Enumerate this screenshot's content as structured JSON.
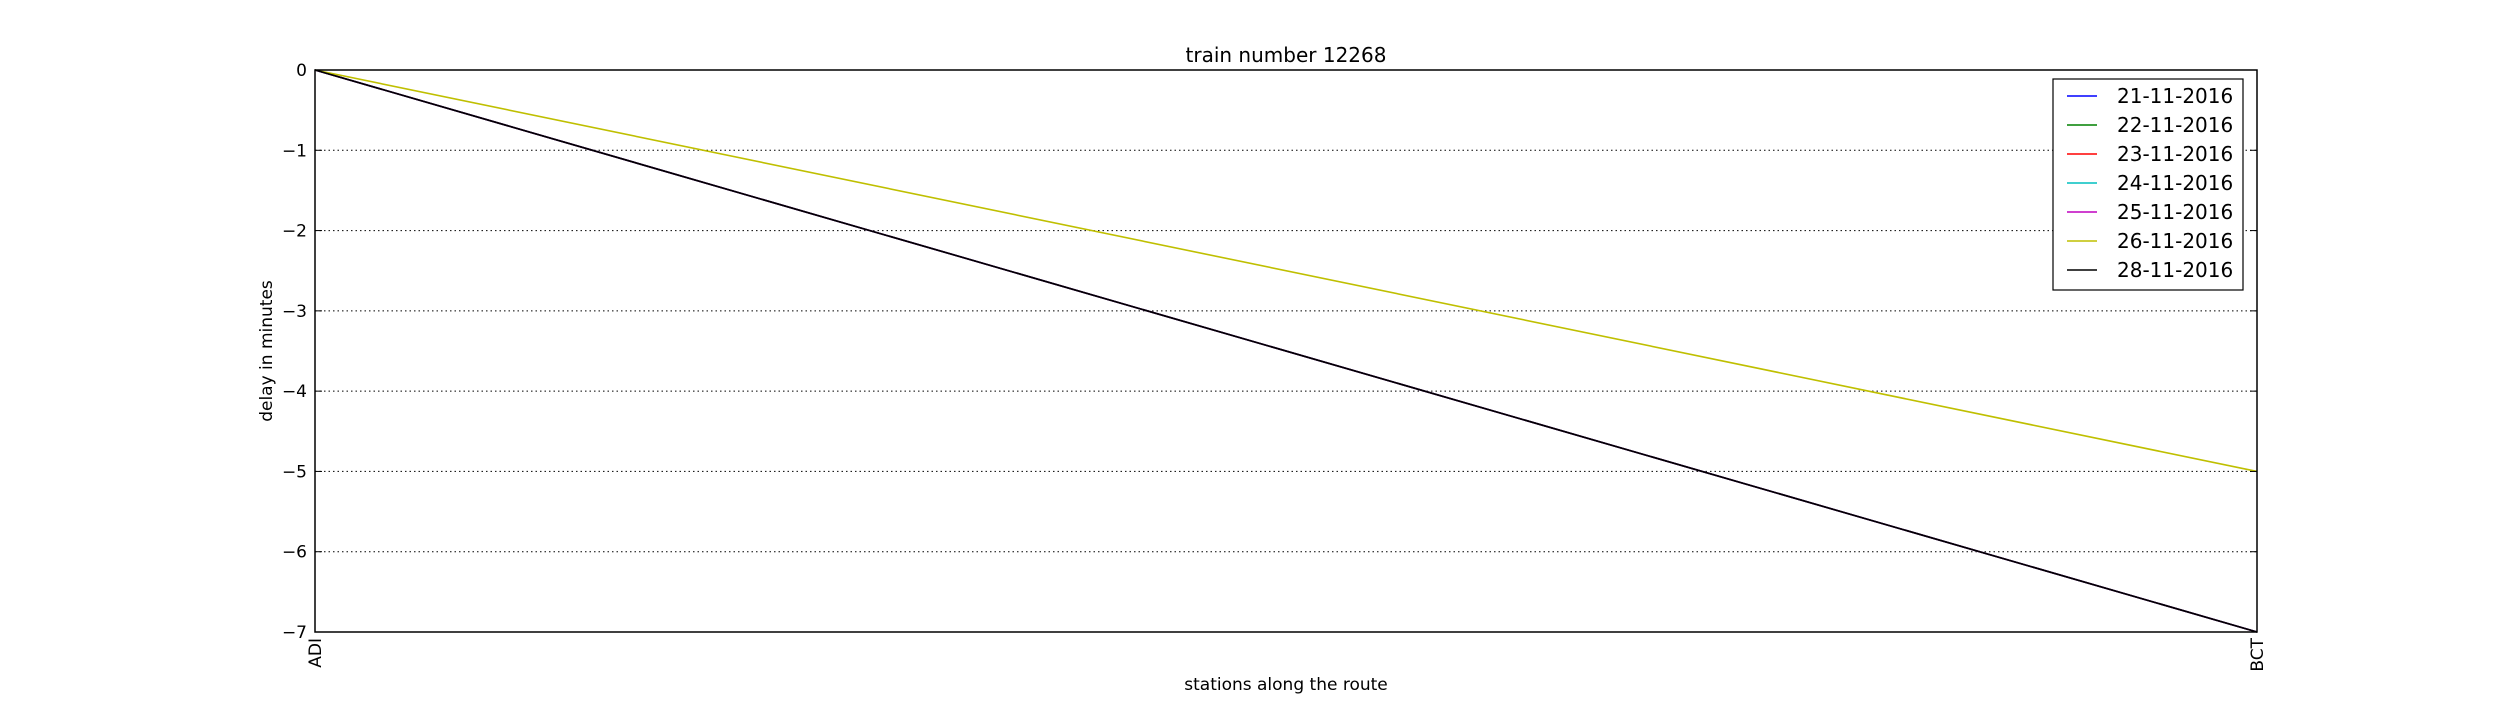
{
  "chart_data": {
    "type": "line",
    "title": "train number 12268",
    "xlabel": "stations along the route",
    "ylabel": "delay in minutes",
    "categories": [
      "ADI",
      "BCT"
    ],
    "ylim": [
      -7,
      0
    ],
    "yticks": [
      0,
      -1,
      -2,
      -3,
      -4,
      -5,
      -6,
      -7
    ],
    "grid": "horizontal-dotted",
    "legend_position": "top-right",
    "series": [
      {
        "name": "21-11-2016",
        "color": "#0000ff",
        "values": [
          0,
          -7
        ]
      },
      {
        "name": "22-11-2016",
        "color": "#008000",
        "values": [
          0,
          -7
        ]
      },
      {
        "name": "23-11-2016",
        "color": "#ff0000",
        "values": [
          0,
          -7
        ]
      },
      {
        "name": "24-11-2016",
        "color": "#00bfbf",
        "values": [
          0,
          -7
        ]
      },
      {
        "name": "25-11-2016",
        "color": "#bf00bf",
        "values": [
          0,
          -7
        ]
      },
      {
        "name": "26-11-2016",
        "color": "#bfbf00",
        "values": [
          0,
          -5
        ]
      },
      {
        "name": "28-11-2016",
        "color": "#000000",
        "values": [
          0,
          -7
        ]
      }
    ]
  }
}
